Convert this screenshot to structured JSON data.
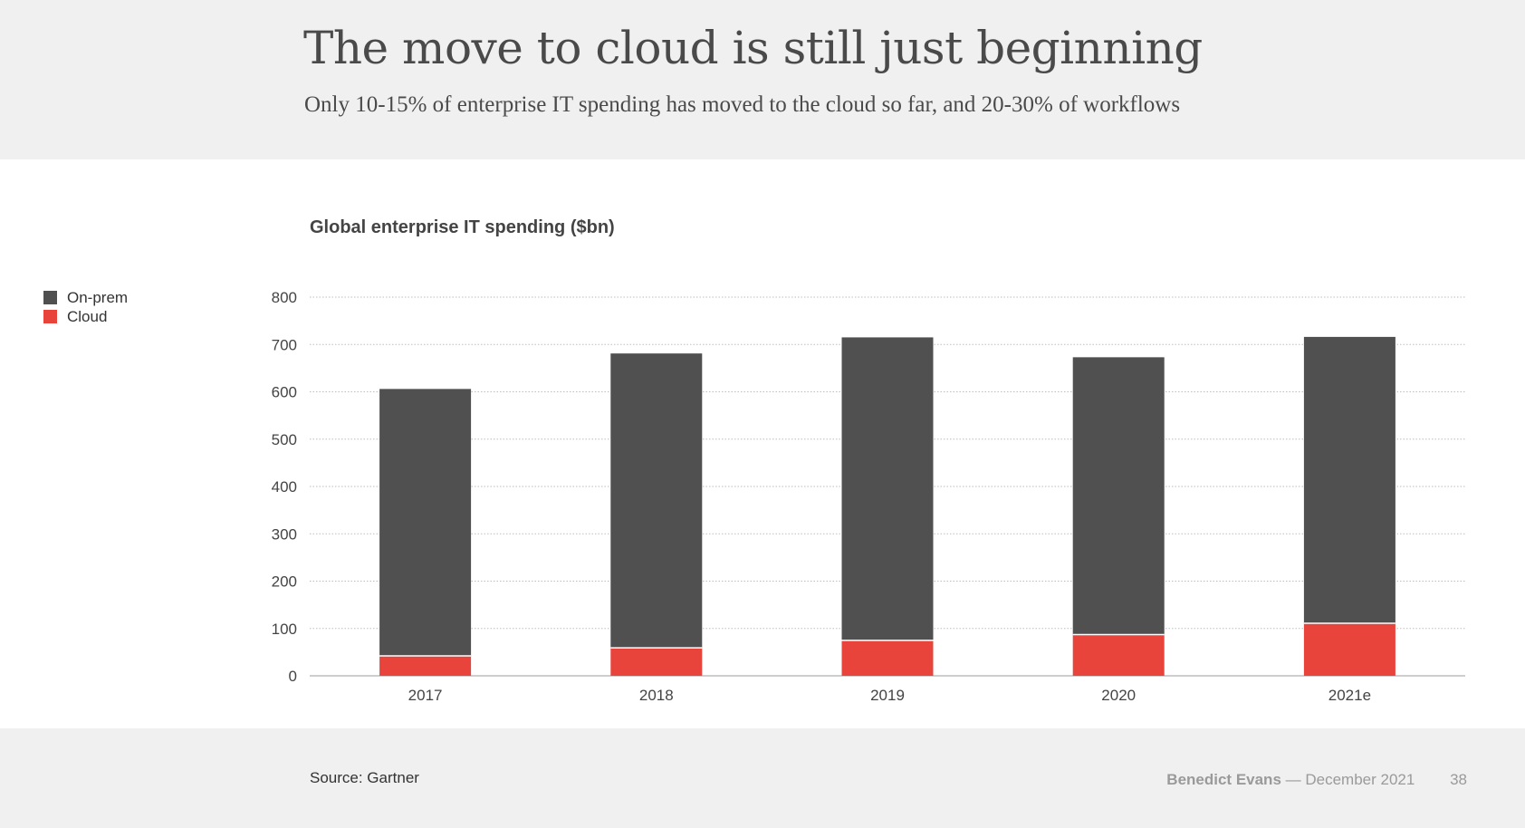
{
  "header": {
    "title": "The move to cloud is still just beginning",
    "subtitle": "Only 10-15% of enterprise IT spending has moved to the cloud so far, and 20-30% of workflows"
  },
  "footer": {
    "source": "Source: Gartner",
    "author": "Benedict Evans",
    "separator": "—",
    "date": "December 2021",
    "page": "38"
  },
  "colors": {
    "onprem": "#505050",
    "cloud": "#e8443c",
    "grid": "#bdbdbd",
    "axis": "#bdbdbd"
  },
  "chart_data": {
    "type": "bar",
    "stacked": true,
    "title": "Global enterprise IT spending ($bn)",
    "categories": [
      "2017",
      "2018",
      "2019",
      "2020",
      "2021e"
    ],
    "series": [
      {
        "name": "On-prem",
        "values": [
          564,
          622,
          640,
          586,
          605
        ],
        "color": "#505050"
      },
      {
        "name": "Cloud",
        "values": [
          42,
          59,
          75,
          87,
          111
        ],
        "color": "#e8443c"
      }
    ],
    "yticks": [
      0,
      100,
      200,
      300,
      400,
      500,
      600,
      700,
      800
    ],
    "ylim": [
      0,
      800
    ],
    "grid": true,
    "legend": "left"
  }
}
